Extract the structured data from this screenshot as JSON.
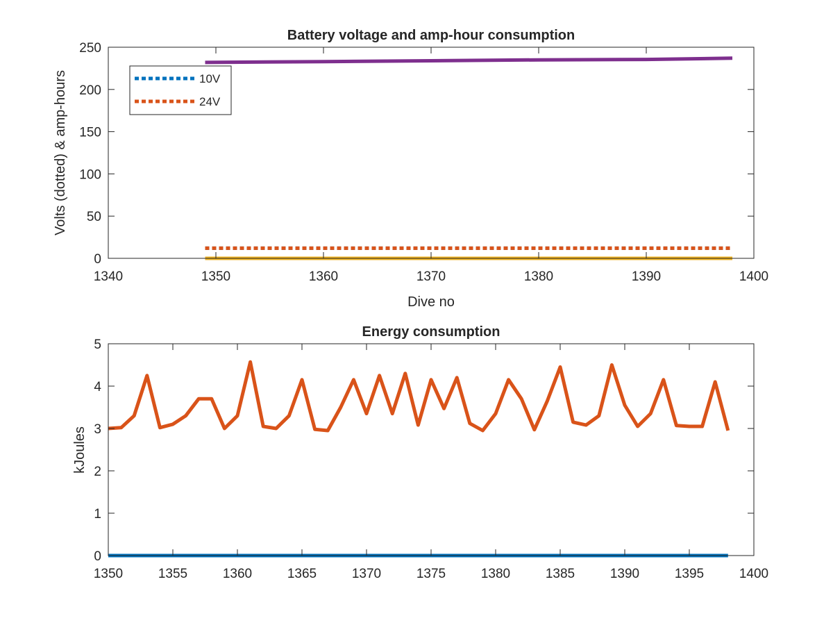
{
  "chart_data": [
    {
      "type": "line",
      "title": "Battery voltage and amp-hour consumption",
      "xlabel": "Dive no",
      "ylabel": "Volts (dotted) & amp-hours",
      "xlim": [
        1340,
        1400
      ],
      "ylim": [
        0,
        250
      ],
      "xticks": [
        "1340",
        "1350",
        "1360",
        "1370",
        "1380",
        "1390",
        "1400"
      ],
      "yticks": [
        "0",
        "50",
        "100",
        "150",
        "200",
        "250"
      ],
      "grid": false,
      "legend": {
        "placement": "top-left",
        "entries": [
          "10V",
          "24V"
        ]
      },
      "series": [
        {
          "name": "10V",
          "style": "dotted",
          "color": "#0072BD",
          "x": [
            1349,
            1398
          ],
          "y": [
            12,
            12
          ]
        },
        {
          "name": "24V",
          "style": "dotted",
          "color": "#D95319",
          "x": [
            1349,
            1398
          ],
          "y": [
            12,
            12
          ]
        },
        {
          "style": "solid",
          "color": "#EDB120",
          "x": [
            1349,
            1398
          ],
          "y": [
            0,
            0
          ]
        },
        {
          "style": "solid",
          "color": "#7E2F8E",
          "x": [
            1349,
            1360,
            1370,
            1380,
            1390,
            1398
          ],
          "y": [
            232,
            233,
            234,
            235,
            235.5,
            237
          ]
        }
      ]
    },
    {
      "type": "line",
      "title": "Energy consumption",
      "xlabel": "",
      "ylabel": "kJoules",
      "xlim": [
        1350,
        1400
      ],
      "ylim": [
        0,
        5
      ],
      "xticks": [
        "1350",
        "1355",
        "1360",
        "1365",
        "1370",
        "1375",
        "1380",
        "1385",
        "1390",
        "1395",
        "1400"
      ],
      "yticks": [
        "0",
        "1",
        "2",
        "3",
        "4",
        "5"
      ],
      "grid": false,
      "series": [
        {
          "style": "solid",
          "color": "#0072BD",
          "x": [
            1350,
            1398
          ],
          "y": [
            0,
            0
          ]
        },
        {
          "style": "solid",
          "color": "#D95319",
          "x": [
            1350,
            1351,
            1352,
            1353,
            1354,
            1355,
            1356,
            1357,
            1358,
            1359,
            1360,
            1361,
            1362,
            1363,
            1364,
            1365,
            1366,
            1367,
            1368,
            1369,
            1370,
            1371,
            1372,
            1373,
            1374,
            1375,
            1376,
            1377,
            1378,
            1379,
            1380,
            1381,
            1382,
            1383,
            1384,
            1385,
            1386,
            1387,
            1388,
            1389,
            1390,
            1391,
            1392,
            1393,
            1394,
            1395,
            1396,
            1397,
            1398
          ],
          "y": [
            3.0,
            3.02,
            3.3,
            4.25,
            3.02,
            3.1,
            3.3,
            3.7,
            3.7,
            3.0,
            3.3,
            4.57,
            3.05,
            3.0,
            3.3,
            4.15,
            2.98,
            2.95,
            3.5,
            4.15,
            3.35,
            4.25,
            3.35,
            4.3,
            3.08,
            4.15,
            3.47,
            4.2,
            3.12,
            2.95,
            3.35,
            4.15,
            3.7,
            2.97,
            3.65,
            4.45,
            3.15,
            3.08,
            3.3,
            4.5,
            3.55,
            3.05,
            3.35,
            4.15,
            3.07,
            3.05,
            3.05,
            4.1,
            2.95
          ]
        }
      ]
    }
  ]
}
